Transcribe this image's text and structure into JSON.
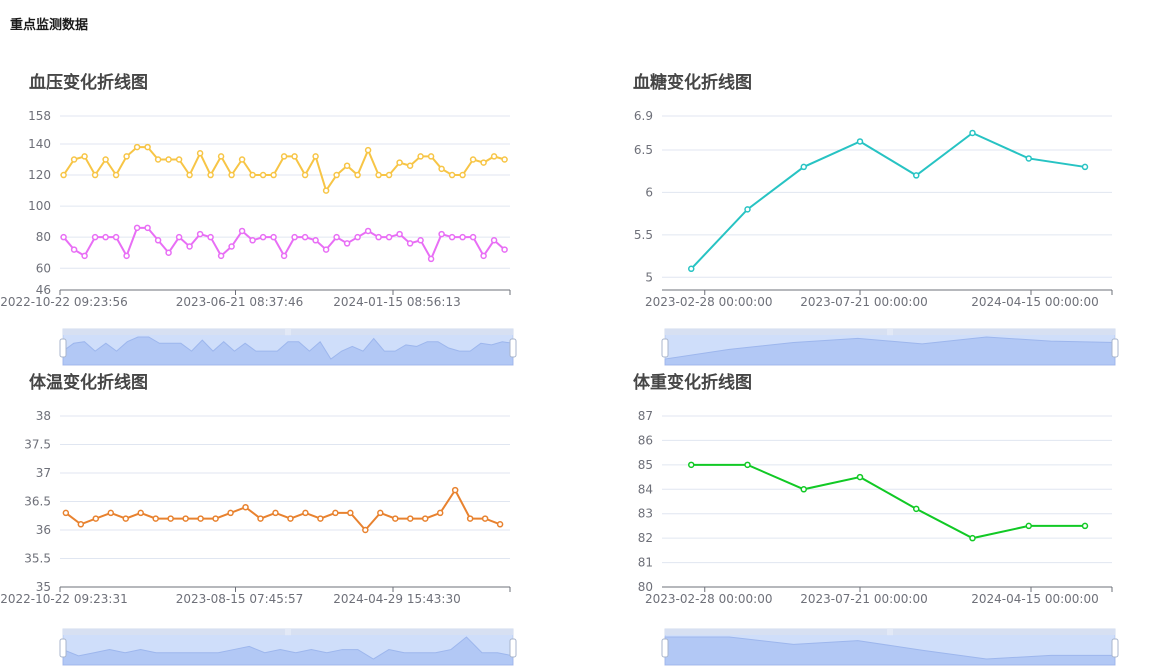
{
  "page": {
    "title": "重点监测数据"
  },
  "chart_data": [
    {
      "id": "bp",
      "type": "line",
      "title": "血压变化折线图",
      "y_ticks": [
        "158",
        "140",
        "120",
        "100",
        "80",
        "60",
        "46"
      ],
      "x_ticks": [
        "2022-10-22 09:23:56",
        "2023-06-21 08:37:46",
        "2024-01-15 08:56:13"
      ],
      "ylim": [
        46,
        158
      ],
      "grid": true,
      "series": [
        {
          "color": "#f7c546",
          "values": [
            120,
            130,
            132,
            120,
            130,
            120,
            132,
            138,
            138,
            130,
            130,
            130,
            120,
            134,
            120,
            132,
            120,
            130,
            120,
            120,
            120,
            132,
            132,
            120,
            132,
            110,
            120,
            126,
            120,
            136,
            120,
            120,
            128,
            126,
            132,
            132,
            124,
            120,
            120,
            130,
            128,
            132,
            130
          ]
        },
        {
          "color": "#e86ef5",
          "values": [
            80,
            72,
            68,
            80,
            80,
            80,
            68,
            86,
            86,
            78,
            70,
            80,
            74,
            82,
            80,
            68,
            74,
            84,
            78,
            80,
            80,
            68,
            80,
            80,
            78,
            72,
            80,
            76,
            80,
            84,
            80,
            80,
            82,
            76,
            78,
            66,
            82,
            80,
            80,
            80,
            68,
            78,
            72
          ]
        }
      ],
      "zoom_preview": [
        120,
        130,
        132,
        120,
        130,
        120,
        132,
        138,
        138,
        130,
        130,
        130,
        120,
        134,
        120,
        132,
        120,
        130,
        120,
        120,
        120,
        132,
        132,
        120,
        132,
        110,
        120,
        126,
        120,
        136,
        120,
        120,
        128,
        126,
        132,
        132,
        124,
        120,
        120,
        130,
        128,
        132,
        130
      ]
    },
    {
      "id": "glucose",
      "type": "line",
      "title": "血糖变化折线图",
      "y_ticks": [
        "6.9",
        "6.5",
        "6",
        "5.5",
        "5"
      ],
      "y_tick_values": [
        6.9,
        6.5,
        6,
        5.5,
        5
      ],
      "x_ticks": [
        "2023-02-28 00:00:00",
        "2023-07-21 00:00:00",
        "2024-04-15 00:00:00"
      ],
      "ylim": [
        4.85,
        6.9
      ],
      "grid": true,
      "series": [
        {
          "color": "#27c3c3",
          "values": [
            5.1,
            5.8,
            6.3,
            6.6,
            6.2,
            6.7,
            6.4,
            6.3
          ]
        }
      ],
      "zoom_preview": [
        5.1,
        5.8,
        6.3,
        6.6,
        6.2,
        6.7,
        6.4,
        6.3
      ]
    },
    {
      "id": "temp",
      "type": "line",
      "title": "体温变化折线图",
      "y_ticks": [
        "38",
        "37.5",
        "37",
        "36.5",
        "36",
        "35.5",
        "35"
      ],
      "y_tick_values": [
        38,
        37.5,
        37,
        36.5,
        36,
        35.5,
        35
      ],
      "x_ticks": [
        "2022-10-22 09:23:31",
        "2023-08-15 07:45:57",
        "2024-04-29 15:43:30"
      ],
      "ylim": [
        35,
        38
      ],
      "grid": true,
      "series": [
        {
          "color": "#e8822f",
          "values": [
            36.3,
            36.1,
            36.2,
            36.3,
            36.2,
            36.3,
            36.2,
            36.2,
            36.2,
            36.2,
            36.2,
            36.3,
            36.4,
            36.2,
            36.3,
            36.2,
            36.3,
            36.2,
            36.3,
            36.3,
            36.0,
            36.3,
            36.2,
            36.2,
            36.2,
            36.3,
            36.7,
            36.2,
            36.2,
            36.1
          ]
        }
      ],
      "zoom_preview": [
        36.3,
        36.1,
        36.2,
        36.3,
        36.2,
        36.3,
        36.2,
        36.2,
        36.2,
        36.2,
        36.2,
        36.3,
        36.4,
        36.2,
        36.3,
        36.2,
        36.3,
        36.2,
        36.3,
        36.3,
        36.0,
        36.3,
        36.2,
        36.2,
        36.2,
        36.3,
        36.7,
        36.2,
        36.2,
        36.1
      ]
    },
    {
      "id": "weight",
      "type": "line",
      "title": "体重变化折线图",
      "y_ticks": [
        "87",
        "86",
        "85",
        "84",
        "83",
        "82",
        "81",
        "80"
      ],
      "y_tick_values": [
        87,
        86,
        85,
        84,
        83,
        82,
        81,
        80
      ],
      "x_ticks": [
        "2023-02-28 00:00:00",
        "2023-07-21 00:00:00",
        "2024-04-15 00:00:00"
      ],
      "ylim": [
        80,
        87
      ],
      "grid": true,
      "series": [
        {
          "color": "#11c925",
          "values": [
            85,
            85,
            84,
            84.5,
            83.2,
            82,
            82.5,
            82.5
          ]
        }
      ],
      "zoom_preview": [
        85,
        85,
        84,
        84.5,
        83.2,
        82,
        82.5,
        82.5
      ]
    }
  ]
}
